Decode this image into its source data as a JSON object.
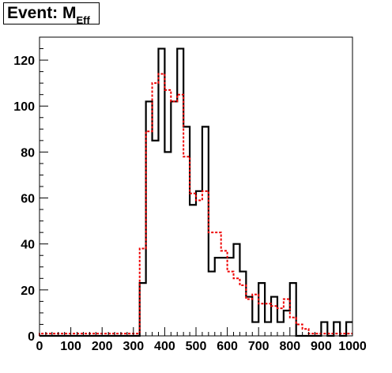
{
  "title": {
    "main": "Event: M",
    "subscript": "Eff"
  },
  "chart_data": {
    "type": "histogram",
    "title": "Event: M_Eff",
    "xlabel": "",
    "ylabel": "",
    "xlim": [
      0,
      1000
    ],
    "ylim": [
      0,
      130
    ],
    "grid": false,
    "bin_edges": [
      0,
      20,
      40,
      60,
      80,
      100,
      120,
      140,
      160,
      180,
      200,
      220,
      240,
      260,
      280,
      300,
      320,
      340,
      360,
      380,
      400,
      420,
      440,
      460,
      480,
      500,
      520,
      540,
      560,
      580,
      600,
      620,
      640,
      660,
      680,
      700,
      720,
      740,
      760,
      780,
      800,
      820,
      840,
      860,
      880,
      900,
      920,
      940,
      960,
      980,
      1000
    ],
    "x_ticks": [
      0,
      100,
      200,
      300,
      400,
      500,
      600,
      700,
      800,
      900,
      1000
    ],
    "y_ticks": [
      0,
      20,
      40,
      60,
      80,
      100,
      120
    ],
    "series": [
      {
        "style": "solid",
        "color": "#000000",
        "values": [
          0,
          0,
          0,
          0,
          0,
          0,
          0,
          0,
          0,
          0,
          0,
          0,
          0,
          0,
          0,
          0,
          23,
          102,
          85,
          125,
          80,
          102,
          125,
          91,
          57,
          63,
          91,
          28,
          34,
          34,
          34,
          40,
          28,
          17,
          6,
          23,
          6,
          17,
          6,
          11,
          23,
          0,
          0,
          0,
          0,
          6,
          0,
          6,
          0,
          6
        ]
      },
      {
        "style": "dashed",
        "color": "#ee0000",
        "values": [
          1,
          1,
          1,
          1,
          1,
          1,
          1,
          1,
          1,
          1,
          1,
          1,
          1,
          1,
          1,
          1,
          38,
          89,
          110,
          114,
          107,
          102,
          105,
          78,
          62,
          59,
          63,
          45,
          45,
          37,
          28,
          25,
          22,
          16,
          18,
          14,
          14,
          13,
          12,
          16,
          8,
          5,
          3,
          1,
          1,
          1,
          1,
          1,
          1,
          1
        ]
      }
    ]
  }
}
